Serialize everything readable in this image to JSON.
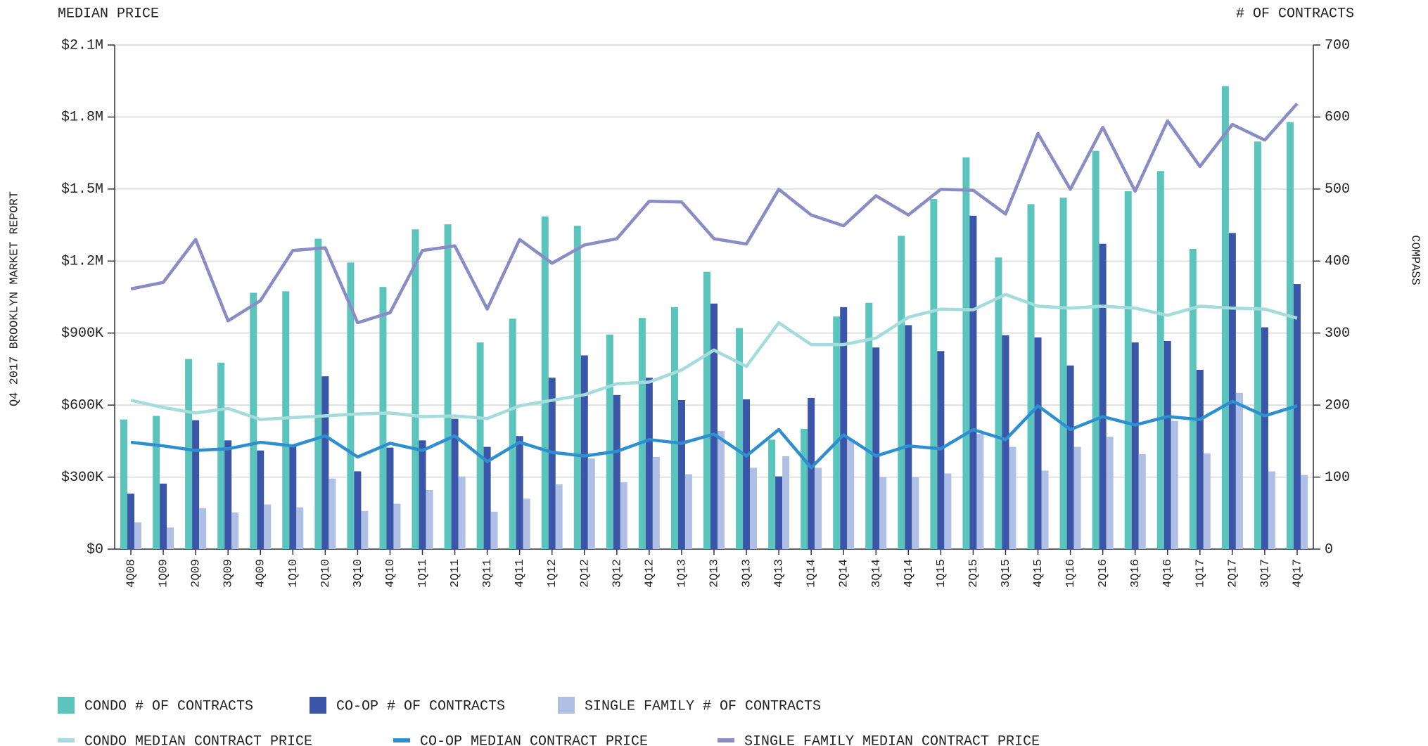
{
  "chart_data": {
    "type": "bar",
    "y_label": "MEDIAN PRICE",
    "y2_label": "# OF CONTRACTS",
    "side_title": "Q4 2017 BROOKLYN MARKET REPORT",
    "brand": "COMPASS",
    "categories": [
      "4Q08",
      "1Q09",
      "2Q09",
      "3Q09",
      "4Q09",
      "1Q10",
      "2Q10",
      "3Q10",
      "4Q10",
      "1Q11",
      "2Q11",
      "3Q11",
      "4Q11",
      "1Q12",
      "2Q12",
      "3Q12",
      "4Q12",
      "1Q13",
      "2Q13",
      "3Q13",
      "4Q13",
      "1Q14",
      "2Q14",
      "3Q14",
      "4Q14",
      "1Q15",
      "2Q15",
      "3Q15",
      "4Q15",
      "1Q16",
      "2Q16",
      "3Q16",
      "4Q16",
      "1Q17",
      "2Q17",
      "3Q17",
      "4Q17"
    ],
    "ylim": [
      0,
      2100000
    ],
    "yticks": [
      {
        "value": 0,
        "label": "$0"
      },
      {
        "value": 300000,
        "label": "$300K"
      },
      {
        "value": 600000,
        "label": "$600K"
      },
      {
        "value": 900000,
        "label": "$900K"
      },
      {
        "value": 1200000,
        "label": "$1.2M"
      },
      {
        "value": 1500000,
        "label": "$1.5M"
      },
      {
        "value": 1800000,
        "label": "$1.8M"
      },
      {
        "value": 2100000,
        "label": "$2.1M"
      }
    ],
    "y2lim": [
      0,
      700
    ],
    "y2ticks": [
      0,
      100,
      200,
      300,
      400,
      500,
      600,
      700
    ],
    "grid": true,
    "series": [
      {
        "name": "CONDO # OF CONTRACTS",
        "type": "bar",
        "axis": "y2",
        "color": "#5bc5bd",
        "values": [
          180,
          185,
          264,
          259,
          356,
          358,
          431,
          398,
          364,
          444,
          451,
          287,
          320,
          462,
          449,
          298,
          321,
          336,
          385,
          307,
          152,
          167,
          323,
          342,
          435,
          486,
          544,
          405,
          479,
          488,
          553,
          497,
          525,
          417,
          643,
          566,
          593
        ]
      },
      {
        "name": "CO-OP # OF CONTRACTS",
        "type": "bar",
        "axis": "y2",
        "color": "#3b56a8",
        "values": [
          77,
          91,
          179,
          151,
          137,
          145,
          240,
          108,
          141,
          151,
          181,
          142,
          157,
          238,
          269,
          214,
          238,
          207,
          341,
          208,
          101,
          210,
          336,
          280,
          311,
          275,
          463,
          297,
          294,
          255,
          424,
          287,
          289,
          249,
          439,
          308,
          368
        ]
      },
      {
        "name": "SINGLE FAMILY # OF CONTRACTS",
        "type": "bar",
        "axis": "y2",
        "color": "#b0c0e4",
        "values": [
          37,
          30,
          57,
          51,
          62,
          58,
          98,
          53,
          63,
          82,
          101,
          52,
          70,
          90,
          126,
          93,
          128,
          104,
          164,
          113,
          129,
          113,
          152,
          100,
          100,
          105,
          160,
          142,
          109,
          142,
          156,
          132,
          178,
          133,
          217,
          108,
          103
        ]
      },
      {
        "name": "CONDO MEDIAN CONTRACT PRICE",
        "type": "line",
        "axis": "y",
        "color": "#a4dcdb",
        "values": [
          620000,
          590000,
          567000,
          586000,
          540000,
          548000,
          555000,
          563000,
          567000,
          552000,
          555000,
          544000,
          597000,
          620000,
          643000,
          689000,
          696000,
          746000,
          829000,
          761000,
          943000,
          852000,
          852000,
          879000,
          966000,
          1000000,
          997000,
          1061000,
          1012000,
          1004000,
          1012000,
          1004000,
          974000,
          1012000,
          1004000,
          1000000,
          962000
        ]
      },
      {
        "name": "CO-OP MEDIAN CONTRACT PRICE",
        "type": "line",
        "axis": "y",
        "color": "#2e8fd0",
        "values": [
          445000,
          430000,
          411000,
          418000,
          445000,
          430000,
          472000,
          384000,
          441000,
          411000,
          472000,
          365000,
          445000,
          403000,
          388000,
          407000,
          456000,
          441000,
          479000,
          388000,
          498000,
          339000,
          476000,
          388000,
          430000,
          418000,
          498000,
          456000,
          597000,
          498000,
          552000,
          517000,
          552000,
          540000,
          616000,
          555000,
          597000
        ]
      },
      {
        "name": "SINGLE FAMILY MEDIAN CONTRACT PRICE",
        "type": "line",
        "axis": "y",
        "color": "#8a8dc5",
        "values": [
          1084000,
          1111000,
          1290000,
          951000,
          1035000,
          1244000,
          1255000,
          943000,
          985000,
          1244000,
          1263000,
          1000000,
          1290000,
          1191000,
          1267000,
          1293000,
          1449000,
          1446000,
          1293000,
          1271000,
          1499000,
          1392000,
          1347000,
          1472000,
          1392000,
          1499000,
          1495000,
          1396000,
          1731000,
          1499000,
          1757000,
          1491000,
          1784000,
          1594000,
          1769000,
          1704000,
          1856000
        ]
      }
    ]
  }
}
